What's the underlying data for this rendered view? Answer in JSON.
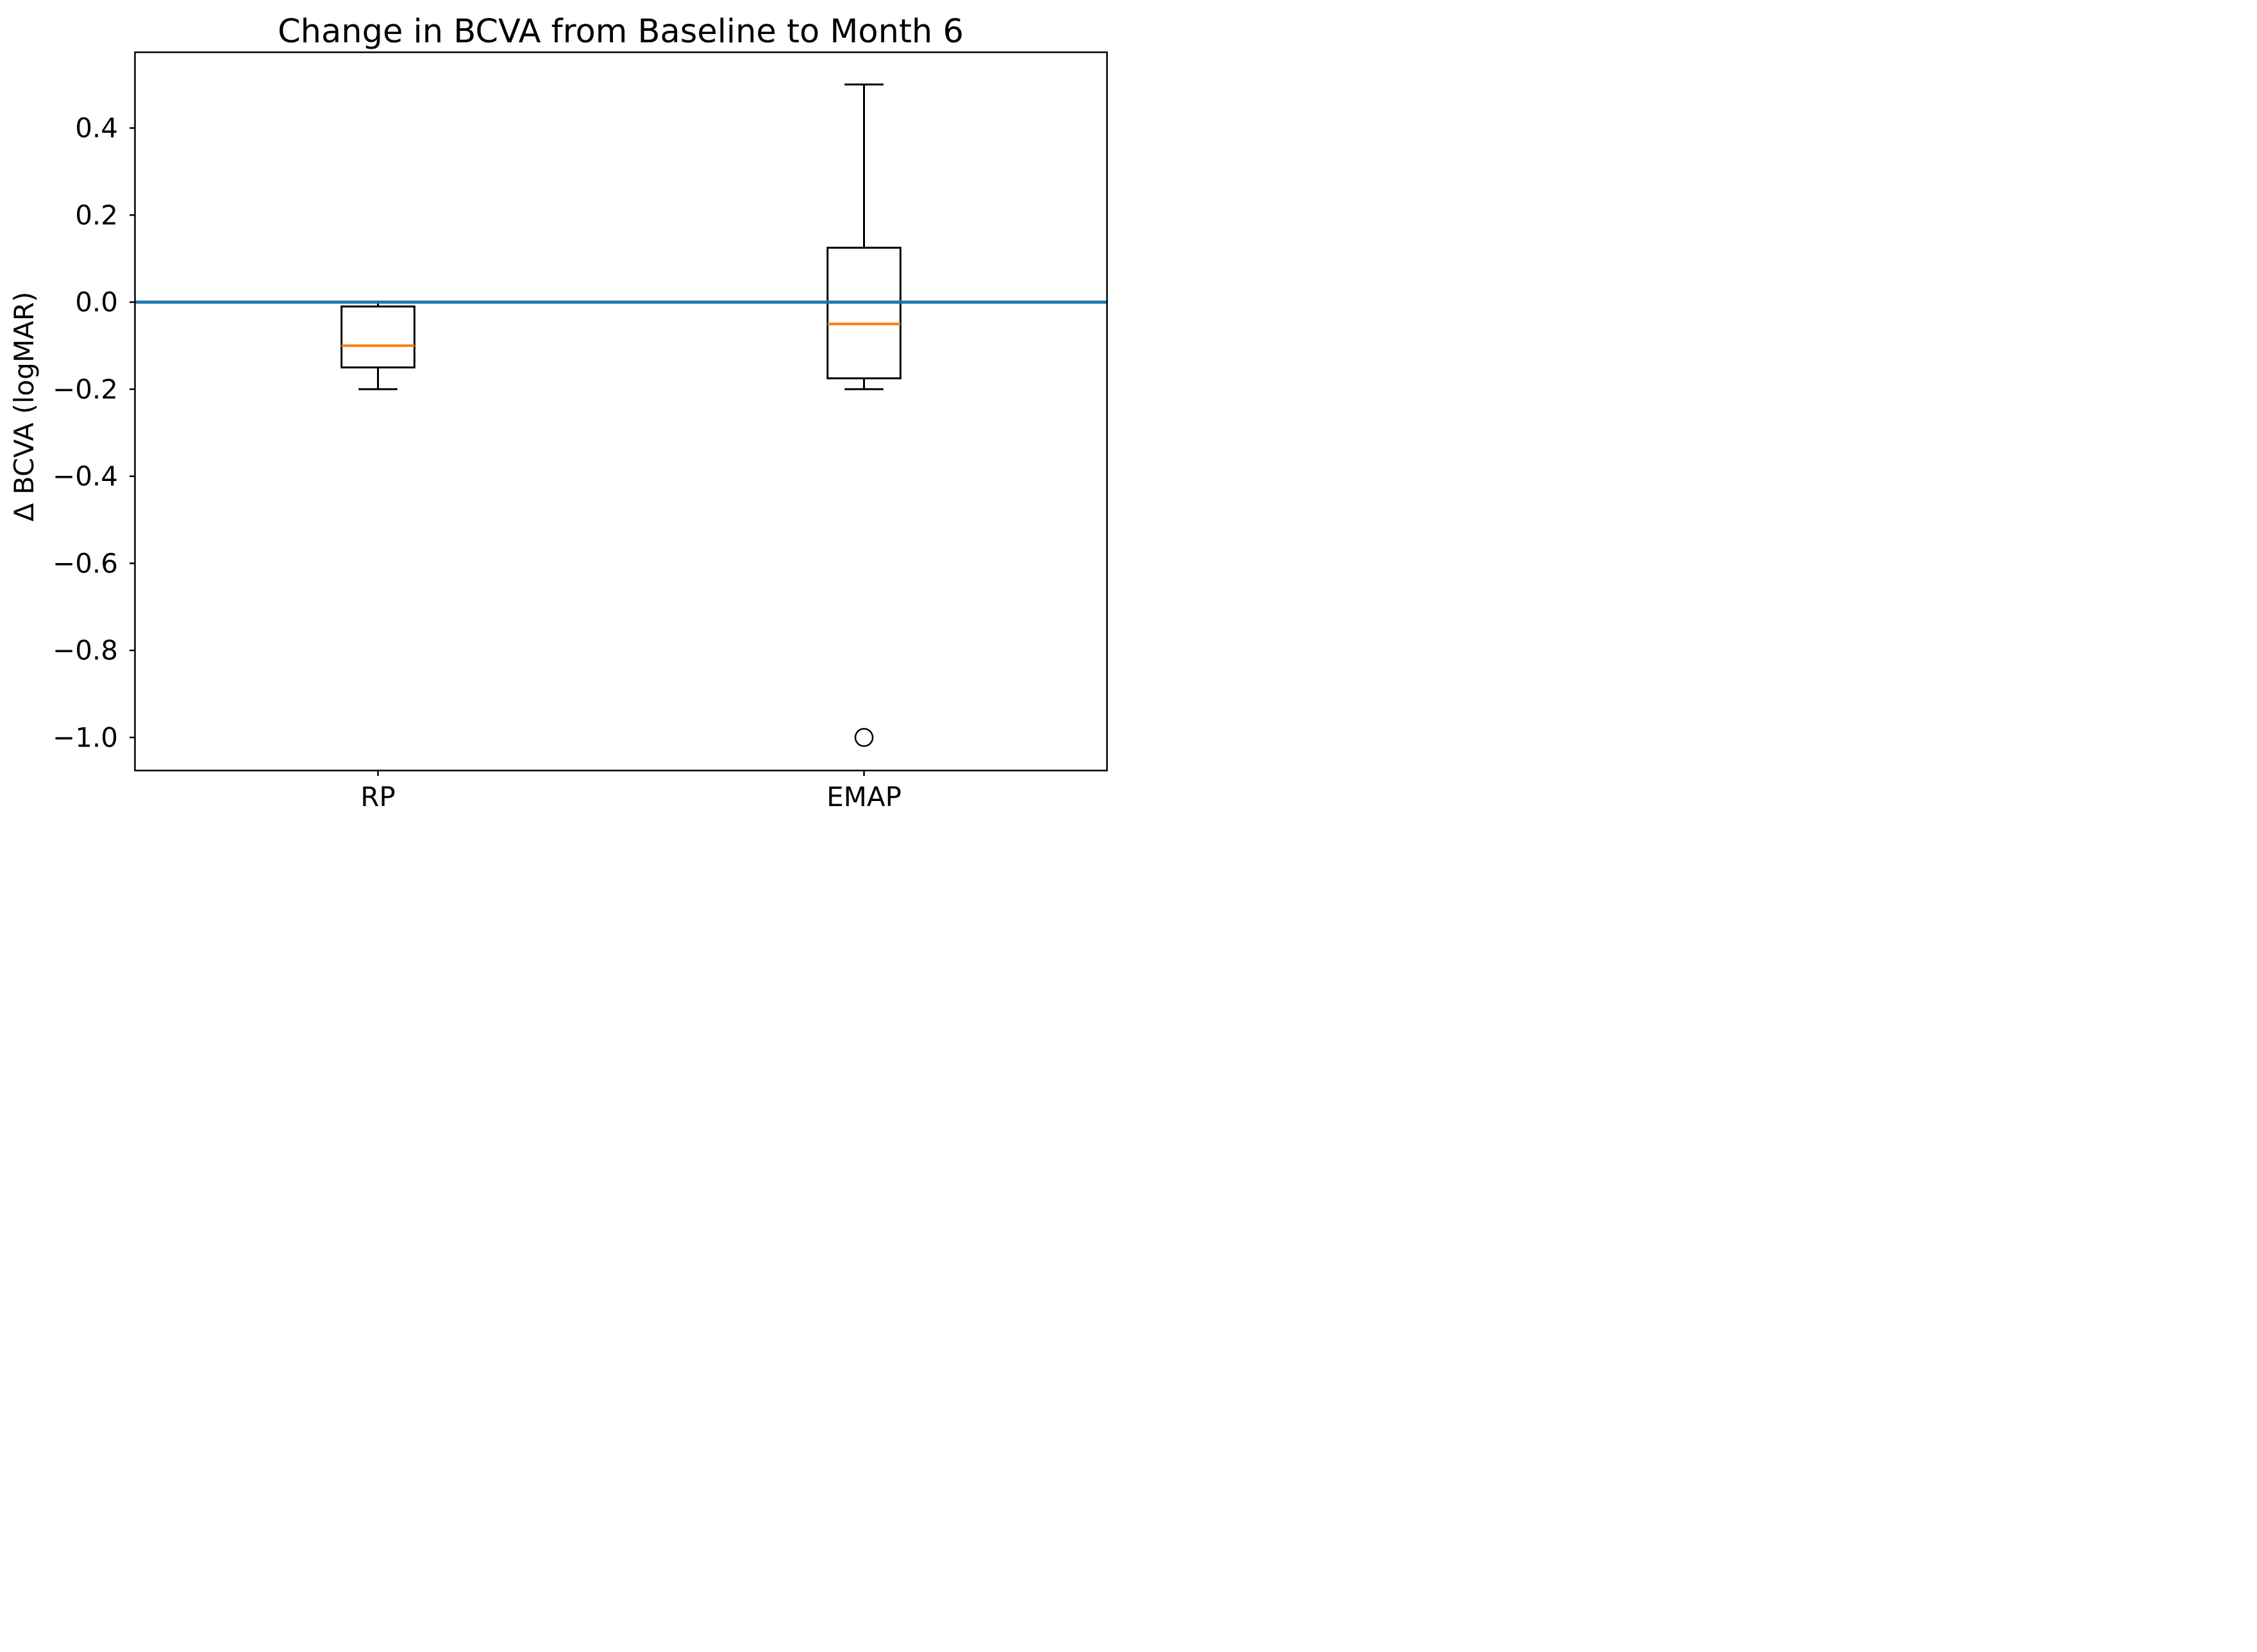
{
  "chart_data": {
    "type": "boxplot",
    "title": "Change in BCVA from Baseline to Month 6",
    "ylabel": "Δ BCVA (logMAR)",
    "xlabel": "",
    "categories": [
      "RP",
      "EMAP"
    ],
    "groups": [
      {
        "label": "RP",
        "position": 1,
        "whisker_low": -0.2,
        "q1": -0.15,
        "median": -0.1,
        "q3": -0.01,
        "whisker_high": 0.0,
        "outliers": []
      },
      {
        "label": "EMAP",
        "position": 2,
        "whisker_low": -0.2,
        "q1": -0.175,
        "median": -0.05,
        "q3": 0.125,
        "whisker_high": 0.5,
        "outliers": [
          -1.0
        ]
      }
    ],
    "reference_line": {
      "y": 0.0,
      "color": "#1f77b4"
    },
    "median_color": "#ff7f0e",
    "box_color": "#000000",
    "yticks": [
      0.4,
      0.2,
      0.0,
      -0.2,
      -0.4,
      -0.6,
      -0.8,
      -1.0
    ],
    "ytick_labels": [
      "0.4",
      "0.2",
      "0.0",
      "−0.2",
      "−0.4",
      "−0.6",
      "−0.8",
      "−1.0"
    ],
    "ylim": [
      -1.076,
      0.574
    ],
    "xlim": [
      0.5,
      2.5
    ],
    "box_width": 0.15,
    "cap_width": 0.08,
    "grid": false,
    "legend": null
  }
}
